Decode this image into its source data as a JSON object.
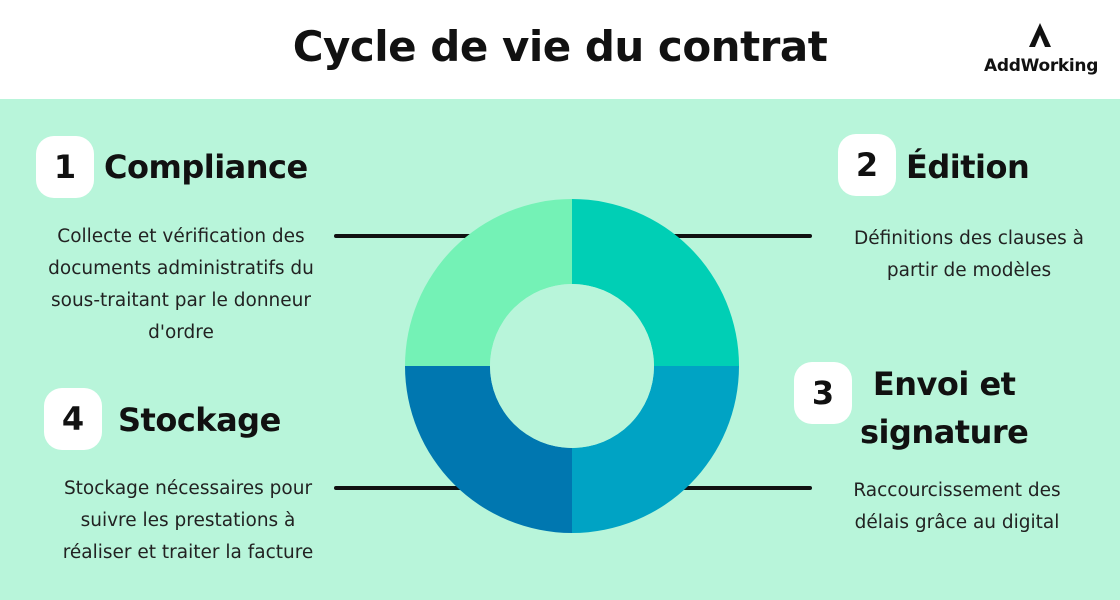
{
  "header": {
    "title": "Cycle de vie du contrat",
    "logo_text": "AddWorking"
  },
  "colors": {
    "background": "#b8f5da",
    "segment_1": "#74f2b6",
    "segment_2": "#00cfb5",
    "segment_3": "#00a3c4",
    "segment_4": "#0077b0"
  },
  "steps": [
    {
      "number": "1",
      "title": "Compliance",
      "lines": [
        "Collecte et vérification des",
        "documents administratifs du",
        "sous-traitant par le donneur",
        "d'ordre"
      ]
    },
    {
      "number": "2",
      "title": "Édition",
      "lines": [
        "Définitions des clauses à",
        "partir de modèles"
      ]
    },
    {
      "number": "3",
      "title_lines": [
        "Envoi et",
        "signature"
      ],
      "lines": [
        "Raccourcissement des",
        "délais grâce au digital"
      ]
    },
    {
      "number": "4",
      "title": "Stockage",
      "lines": [
        "Stockage nécessaires pour",
        "suivre les prestations à",
        "réaliser et traiter la facture"
      ]
    }
  ]
}
